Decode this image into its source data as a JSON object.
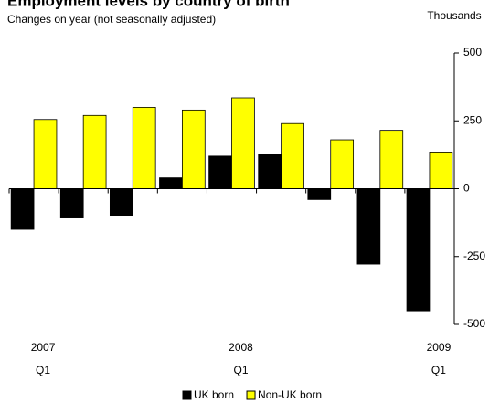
{
  "chart_data": {
    "type": "bar",
    "title": "Employment levels by country of birth",
    "subtitle": "Changes on year (not seasonally adjusted)",
    "y_axis_label": "Thousands",
    "categories": [
      "Q1",
      null,
      null,
      null,
      "Q1",
      null,
      null,
      null,
      "Q1"
    ],
    "category_years": [
      "2007",
      null,
      null,
      null,
      "2008",
      null,
      null,
      null,
      "2009"
    ],
    "series": [
      {
        "name": "UK born",
        "color": "#000000",
        "values": [
          -150,
          -108,
          -98,
          40,
          120,
          128,
          -40,
          -278,
          -450
        ]
      },
      {
        "name": "Non-UK born",
        "color": "#ffff00",
        "values": [
          255,
          270,
          300,
          290,
          335,
          240,
          180,
          215,
          135
        ]
      }
    ],
    "ylim": [
      -500,
      500
    ],
    "yticks": [
      500,
      250,
      0,
      -250,
      -500
    ],
    "y_axis_side": "right",
    "legend": "bottom",
    "grid": false
  }
}
